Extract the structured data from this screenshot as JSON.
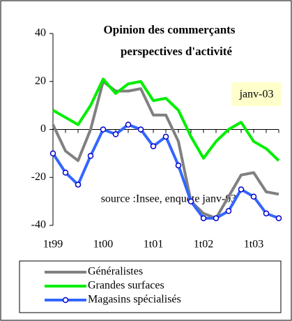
{
  "chart_data": {
    "type": "line",
    "title": "Opinion des commerçants",
    "subtitle": "perspectives d'activité",
    "categories": [
      "1t99",
      null,
      null,
      null,
      "1t00",
      null,
      null,
      null,
      "1t01",
      null,
      null,
      null,
      "1t02",
      null,
      null,
      null,
      "1t03",
      null,
      null
    ],
    "series": [
      {
        "name": "Généralistes",
        "color": "#808080",
        "values": [
          2,
          -9,
          -13,
          0,
          20,
          16,
          16,
          17,
          6,
          6,
          -5,
          -30,
          -35,
          -37,
          -28,
          -19,
          -18,
          -26,
          -27
        ]
      },
      {
        "name": "Grandes surfaces",
        "color": "#00ee00",
        "values": [
          8,
          5,
          2,
          10,
          21,
          15,
          19,
          20,
          12,
          13,
          8,
          -3,
          -12,
          -5,
          0,
          3,
          -5,
          -8,
          -13
        ]
      },
      {
        "name": "Magasins spécialisés",
        "color": "#3366ff",
        "marker": true,
        "values": [
          -10,
          -18,
          -23,
          -11,
          0,
          -2,
          2,
          0,
          -7,
          -3,
          -15,
          -30,
          -37,
          -37,
          -34,
          -25,
          -28,
          -35,
          -37
        ]
      }
    ],
    "annotations": [
      "janv-03",
      "source :Insee, enquête janv-03"
    ],
    "ylim": [
      -40,
      40
    ],
    "yticks": [
      -40,
      -20,
      0,
      20,
      40
    ]
  }
}
